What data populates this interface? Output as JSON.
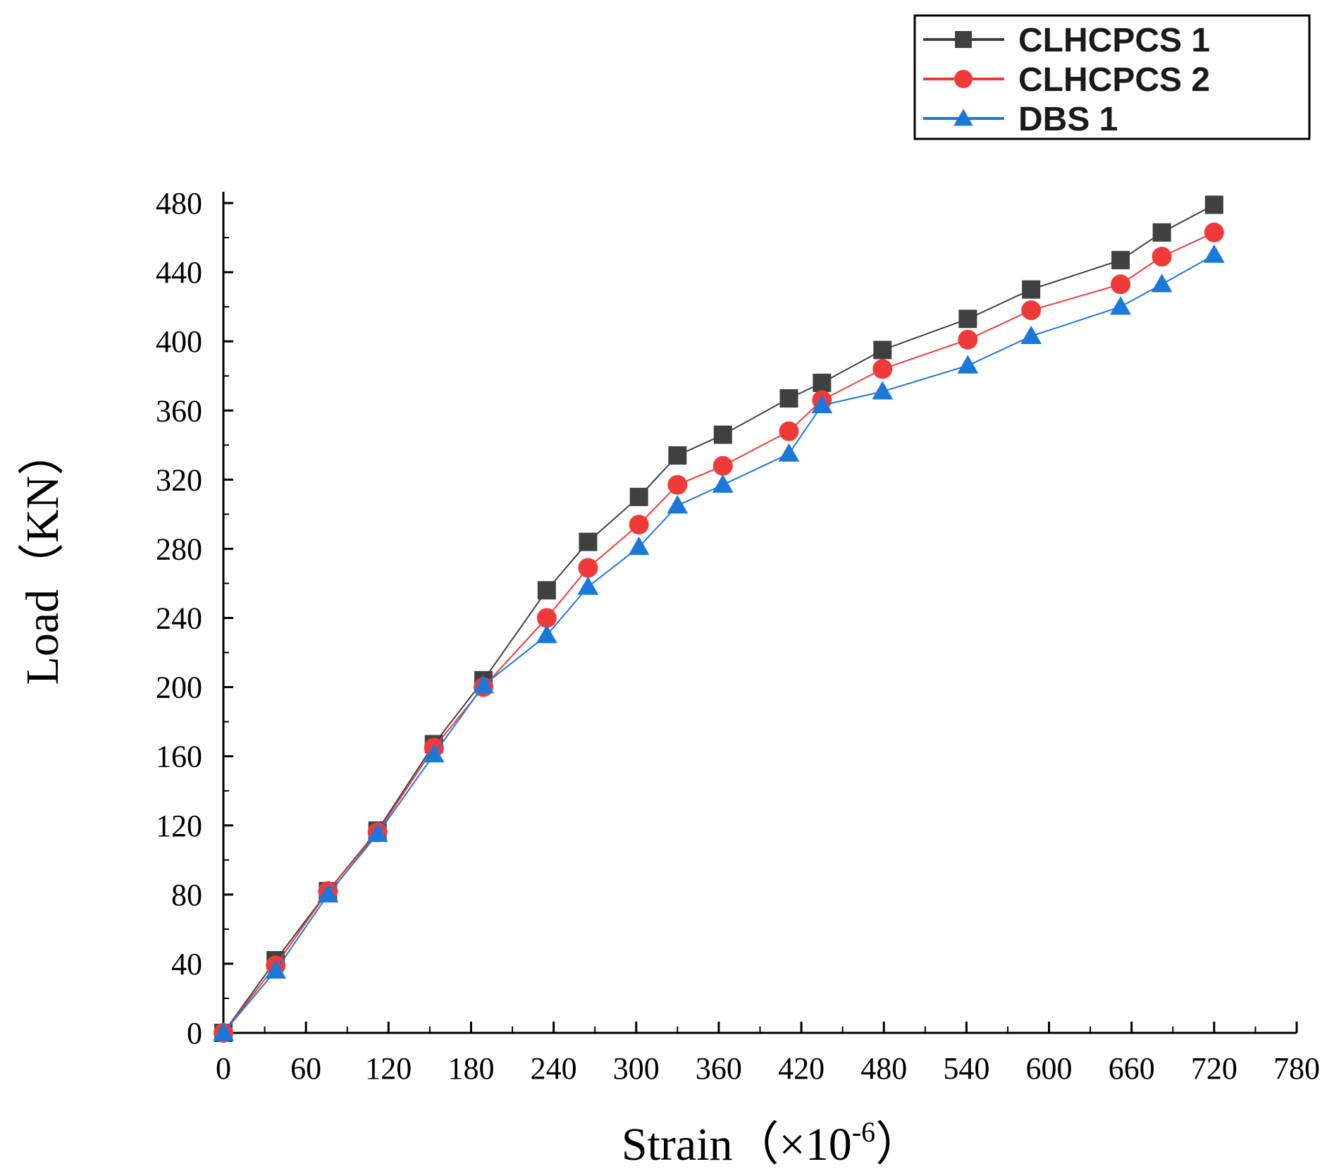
{
  "chart_data": {
    "type": "line",
    "title": "",
    "xlabel": "Strain（×10",
    "xlabel_sup": "-6",
    "xlabel_end": "）",
    "ylabel": "Load（KN）",
    "xlim": [
      0,
      780
    ],
    "ylim": [
      0,
      480
    ],
    "xticks": [
      0,
      60,
      120,
      180,
      240,
      300,
      360,
      420,
      480,
      540,
      600,
      660,
      720,
      780
    ],
    "yticks": [
      0,
      40,
      80,
      120,
      160,
      200,
      240,
      280,
      320,
      360,
      400,
      440,
      480
    ],
    "grid": false,
    "legend_position": "top-right",
    "series": [
      {
        "name": "CLHCPCS 1",
        "color": "#404040",
        "marker": "square",
        "points": [
          [
            0,
            0
          ],
          [
            38,
            42
          ],
          [
            76,
            82
          ],
          [
            112,
            117
          ],
          [
            153,
            167
          ],
          [
            189,
            204
          ],
          [
            235,
            256
          ],
          [
            265,
            284
          ],
          [
            302,
            310
          ],
          [
            330,
            334
          ],
          [
            363,
            346
          ],
          [
            411,
            367
          ],
          [
            435,
            376
          ],
          [
            479,
            395
          ],
          [
            541,
            413
          ],
          [
            587,
            430
          ],
          [
            652,
            447
          ],
          [
            682,
            463
          ],
          [
            720,
            479
          ]
        ]
      },
      {
        "name": "CLHCPCS 2",
        "color": "#f03a3a",
        "marker": "circle",
        "points": [
          [
            0,
            0
          ],
          [
            38,
            39
          ],
          [
            76,
            82
          ],
          [
            112,
            116
          ],
          [
            153,
            165
          ],
          [
            189,
            200
          ],
          [
            235,
            240
          ],
          [
            265,
            269
          ],
          [
            302,
            294
          ],
          [
            330,
            317
          ],
          [
            363,
            328
          ],
          [
            411,
            348
          ],
          [
            435,
            366
          ],
          [
            479,
            384
          ],
          [
            541,
            401
          ],
          [
            587,
            418
          ],
          [
            652,
            433
          ],
          [
            682,
            449
          ],
          [
            720,
            463
          ]
        ]
      },
      {
        "name": "DBS 1",
        "color": "#1a78d8",
        "marker": "triangle",
        "points": [
          [
            0,
            0
          ],
          [
            38,
            36
          ],
          [
            76,
            80
          ],
          [
            112,
            115
          ],
          [
            153,
            161
          ],
          [
            189,
            201
          ],
          [
            235,
            230
          ],
          [
            265,
            258
          ],
          [
            302,
            281
          ],
          [
            330,
            305
          ],
          [
            363,
            317
          ],
          [
            411,
            335
          ],
          [
            435,
            363
          ],
          [
            479,
            371
          ],
          [
            541,
            386
          ],
          [
            587,
            403
          ],
          [
            652,
            420
          ],
          [
            682,
            433
          ],
          [
            720,
            450
          ]
        ]
      }
    ]
  }
}
